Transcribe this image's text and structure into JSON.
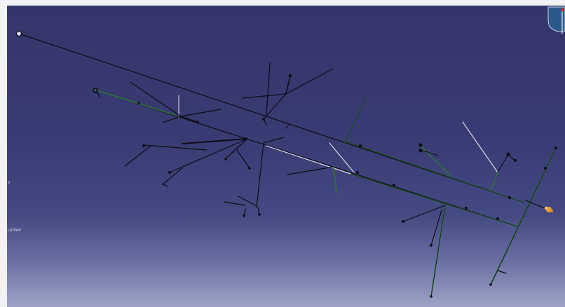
{
  "viewport": {
    "side_label_top": "0",
    "side_label_bottom": "LATPAH",
    "colors": {
      "background_top": "#34356a",
      "background_bottom": "#9ea3c6",
      "wire": "#0c0c14",
      "wire_green": "#2f6f3a",
      "wire_highlight": "#d8d8e6",
      "highlight_node": "#f0a030",
      "compass_fill": "#2a5a8c",
      "compass_accent": "#e02020"
    }
  },
  "model": {
    "name": "wire-harness",
    "icons": [
      "compass-icon",
      "highlight-node-icon",
      "connector-icon"
    ]
  }
}
